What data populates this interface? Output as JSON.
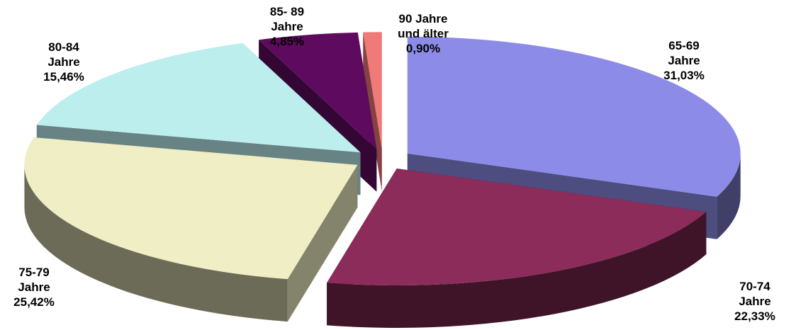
{
  "chart_data": {
    "type": "pie",
    "categories": [
      [
        "65-69",
        "Jahre"
      ],
      [
        "70-74",
        "Jahre"
      ],
      [
        "75-79",
        "Jahre"
      ],
      [
        "80-84",
        "Jahre"
      ],
      [
        "85- 89",
        "Jahre"
      ],
      [
        "90 Jahre",
        "und älter"
      ]
    ],
    "values": [
      31.03,
      22.33,
      25.42,
      15.46,
      4.85,
      0.9
    ],
    "value_labels": [
      "31,03%",
      "22,33%",
      "25,42%",
      "15,46%",
      "4,85%",
      "0,90%"
    ],
    "colors": [
      "#8c8ce8",
      "#8b2c5a",
      "#f0eec4",
      "#bdeeee",
      "#5e0a5e",
      "#f07a78"
    ]
  }
}
